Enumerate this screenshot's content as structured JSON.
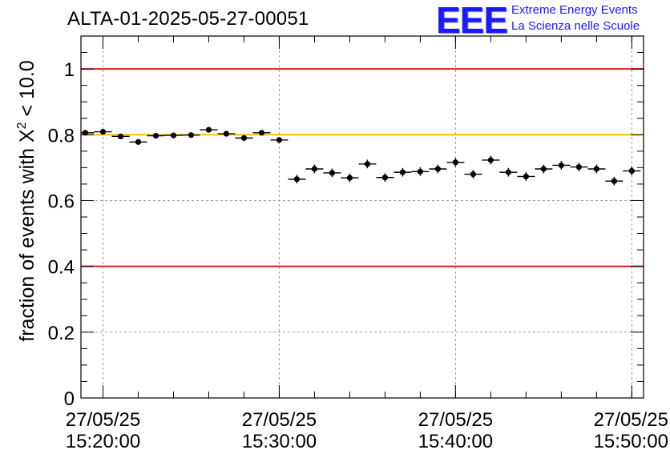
{
  "header": {
    "title": "ALTA-01-2025-05-27-00051"
  },
  "logo": {
    "mark": "EEE",
    "line1": "Extreme Energy Events",
    "line2": "La Scienza nelle Scuole",
    "color": "#1a1aff"
  },
  "chart_data": {
    "type": "scatter",
    "title": "ALTA-01-2025-05-27-00051",
    "ylabel_prefix": "fraction of events with ",
    "ylabel_symbol": "X",
    "ylabel_sup": "2",
    "ylabel_suffix": " < 10.0",
    "ylim": [
      0,
      1.1
    ],
    "yticks": [
      "0",
      "0.2",
      "0.4",
      "0.6",
      "0.8",
      "1"
    ],
    "ytick_values": [
      0,
      0.2,
      0.4,
      0.6,
      0.8,
      1.0
    ],
    "xlim": [
      "15:18:45",
      "15:50:40"
    ],
    "xticks": [
      {
        "date": "27/05/25",
        "time": "15:20:00"
      },
      {
        "date": "27/05/25",
        "time": "15:30:00"
      },
      {
        "date": "27/05/25",
        "time": "15:40:00"
      },
      {
        "date": "27/05/25",
        "time": "15:50:00"
      }
    ],
    "grid": true,
    "reference_lines": [
      {
        "y": 1.0,
        "color": "#e02020"
      },
      {
        "y": 0.8,
        "color": "#ffc000"
      },
      {
        "y": 0.4,
        "color": "#e02020"
      }
    ],
    "points": [
      {
        "t": "15:19:00",
        "y": 0.806,
        "err": 0.006
      },
      {
        "t": "15:20:00",
        "y": 0.809,
        "err": 0.006
      },
      {
        "t": "15:21:00",
        "y": 0.795,
        "err": 0.007
      },
      {
        "t": "15:22:00",
        "y": 0.778,
        "err": 0.007
      },
      {
        "t": "15:23:00",
        "y": 0.797,
        "err": 0.007
      },
      {
        "t": "15:24:00",
        "y": 0.798,
        "err": 0.007
      },
      {
        "t": "15:25:00",
        "y": 0.799,
        "err": 0.007
      },
      {
        "t": "15:26:00",
        "y": 0.815,
        "err": 0.007
      },
      {
        "t": "15:27:00",
        "y": 0.803,
        "err": 0.007
      },
      {
        "t": "15:28:00",
        "y": 0.79,
        "err": 0.007
      },
      {
        "t": "15:29:00",
        "y": 0.806,
        "err": 0.007
      },
      {
        "t": "15:30:00",
        "y": 0.784,
        "err": 0.007
      },
      {
        "t": "15:31:00",
        "y": 0.665,
        "err": 0.013
      },
      {
        "t": "15:32:00",
        "y": 0.696,
        "err": 0.013
      },
      {
        "t": "15:33:00",
        "y": 0.684,
        "err": 0.013
      },
      {
        "t": "15:34:00",
        "y": 0.669,
        "err": 0.013
      },
      {
        "t": "15:35:00",
        "y": 0.711,
        "err": 0.013
      },
      {
        "t": "15:36:00",
        "y": 0.67,
        "err": 0.013
      },
      {
        "t": "15:37:00",
        "y": 0.686,
        "err": 0.013
      },
      {
        "t": "15:38:00",
        "y": 0.688,
        "err": 0.013
      },
      {
        "t": "15:39:00",
        "y": 0.696,
        "err": 0.013
      },
      {
        "t": "15:40:00",
        "y": 0.716,
        "err": 0.013
      },
      {
        "t": "15:41:00",
        "y": 0.68,
        "err": 0.013
      },
      {
        "t": "15:42:00",
        "y": 0.723,
        "err": 0.013
      },
      {
        "t": "15:43:00",
        "y": 0.686,
        "err": 0.013
      },
      {
        "t": "15:44:00",
        "y": 0.673,
        "err": 0.013
      },
      {
        "t": "15:45:00",
        "y": 0.696,
        "err": 0.013
      },
      {
        "t": "15:46:00",
        "y": 0.707,
        "err": 0.013
      },
      {
        "t": "15:47:00",
        "y": 0.702,
        "err": 0.013
      },
      {
        "t": "15:48:00",
        "y": 0.696,
        "err": 0.013
      },
      {
        "t": "15:49:00",
        "y": 0.659,
        "err": 0.013
      },
      {
        "t": "15:50:00",
        "y": 0.69,
        "err": 0.013
      }
    ],
    "marker_color": "#000000",
    "grid_color": "#9a9a9a"
  }
}
